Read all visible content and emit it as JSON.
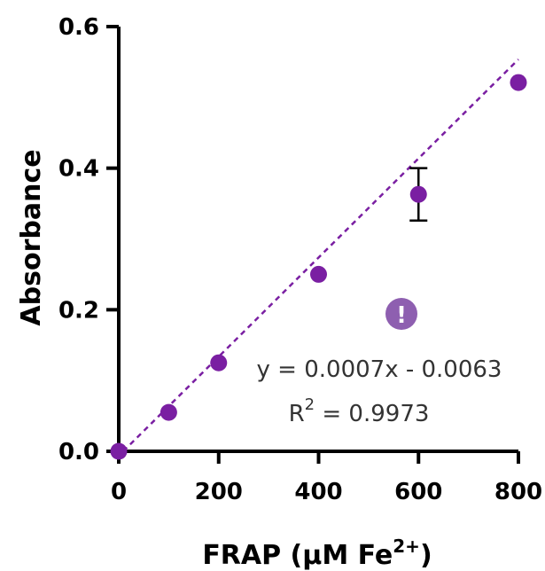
{
  "chart_data": {
    "type": "scatter",
    "title": "",
    "xlabel": "FRAP (μM Fe",
    "xlabel_sup": "2+",
    "xlabel_suffix": ")",
    "ylabel": "Absorbance",
    "xlim": [
      0,
      800
    ],
    "ylim": [
      0,
      0.6
    ],
    "x_ticks": [
      0,
      200,
      400,
      600,
      800
    ],
    "x_tick_labels": [
      "0",
      "200",
      "400",
      "600",
      "800"
    ],
    "y_ticks": [
      0,
      0.2,
      0.4,
      0.6
    ],
    "y_tick_labels": [
      "0.0",
      "0.2",
      "0.4",
      "0.6"
    ],
    "series": [
      {
        "x": [
          0,
          100,
          200,
          400,
          600,
          800
        ],
        "y": [
          0.0,
          0.055,
          0.125,
          0.25,
          0.363,
          0.521
        ],
        "error": [
          0,
          0,
          0,
          0,
          0.037,
          0
        ],
        "color": "#7a1fa2"
      }
    ],
    "fit": {
      "slope": 0.0007,
      "intercept": -0.0063,
      "color": "#7a1fa2"
    },
    "annotations": {
      "equation": "y = 0.0007x - 0.0063",
      "r2_prefix": "R",
      "r2_sup": "2",
      "r2_suffix": " = 0.9973"
    },
    "grid": false,
    "warning_icon": {
      "name": "exclamation-icon",
      "symbol": "!",
      "color": "#8e5fb0"
    }
  }
}
